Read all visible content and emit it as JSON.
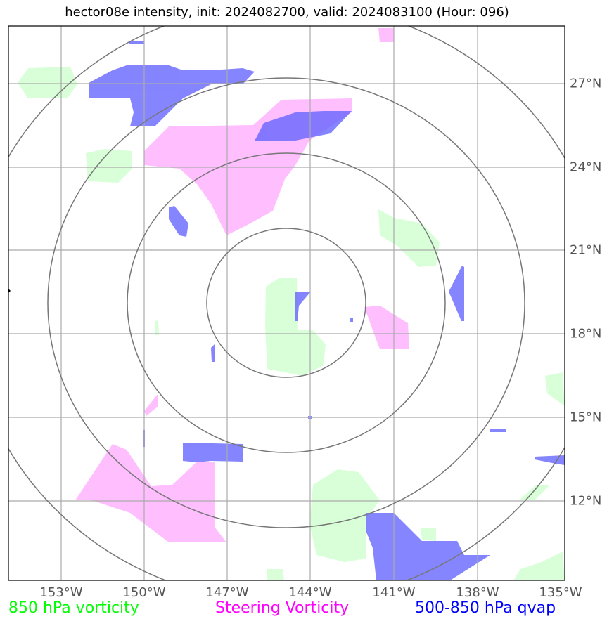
{
  "title": "hector08e intensity, init: 2024082700, valid: 2024083100 (Hour: 096)",
  "x_ticks": [
    "153°W",
    "150°W",
    "147°W",
    "144°W",
    "141°W",
    "138°W",
    "135°W"
  ],
  "y_ticks": [
    "27°N",
    "24°N",
    "21°N",
    "18°N",
    "15°N",
    "12°N"
  ],
  "legend": [
    {
      "label": "850 hPa vorticity",
      "color": "#00ff00"
    },
    {
      "label": "Steering Vorticity",
      "color": "#ff00ff"
    },
    {
      "label": "500-850 hPa qvap",
      "color": "#0000ff"
    }
  ],
  "colors": {
    "vorticity_850": "#ccffcc",
    "steering_vorticity": "#ffaaff",
    "qvap": "#6666ff",
    "range_rings": "#777777",
    "gridlines": "#aaaaaa"
  }
}
